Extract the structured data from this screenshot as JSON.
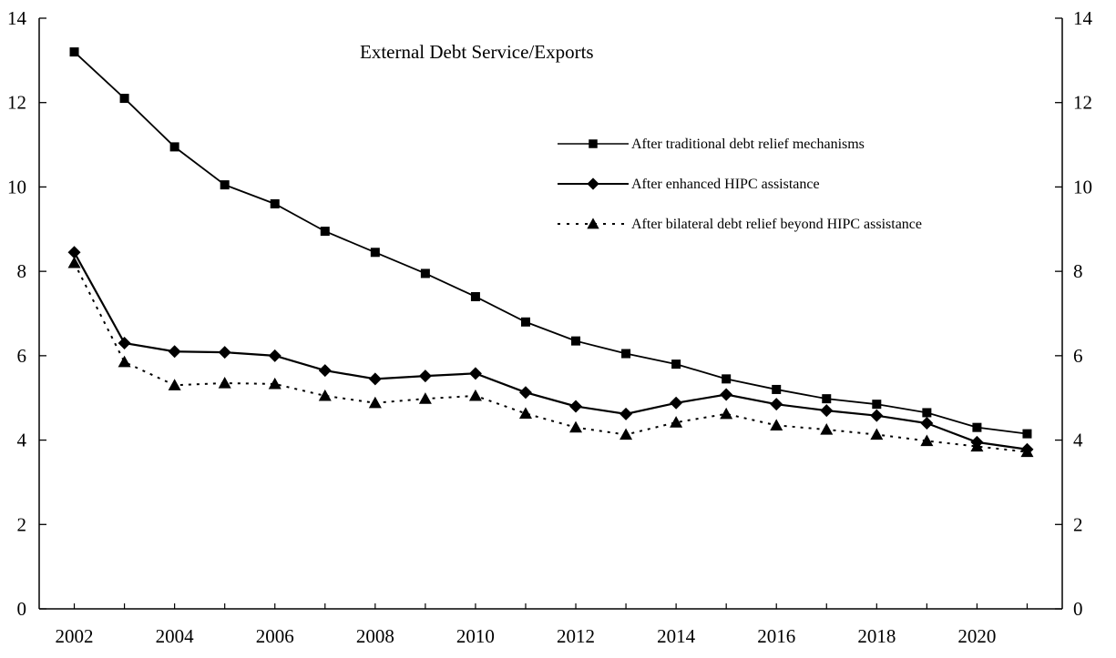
{
  "chart_data": {
    "type": "line",
    "title": "External Debt Service/Exports",
    "xlabel": "",
    "ylabel": "",
    "ylim": [
      0,
      14
    ],
    "y_ticks": [
      0,
      2,
      4,
      6,
      8,
      10,
      12,
      14
    ],
    "x_ticks": [
      2002,
      2004,
      2006,
      2008,
      2010,
      2012,
      2014,
      2016,
      2018,
      2020
    ],
    "x_range": [
      2001.3,
      2021.7
    ],
    "grid": false,
    "right_axis": true,
    "legend_position": "upper-right",
    "x": [
      2002,
      2003,
      2004,
      2005,
      2006,
      2007,
      2008,
      2009,
      2010,
      2011,
      2012,
      2013,
      2014,
      2015,
      2016,
      2017,
      2018,
      2019,
      2020,
      2021
    ],
    "series": [
      {
        "name": "After traditional debt relief mechanisms",
        "marker": "square",
        "line_style": "solid",
        "color": "#000000",
        "values": [
          13.2,
          12.1,
          10.95,
          10.05,
          9.6,
          8.95,
          8.45,
          7.95,
          7.4,
          6.8,
          6.35,
          6.05,
          5.8,
          5.45,
          5.2,
          4.98,
          4.85,
          4.65,
          4.3,
          4.15
        ]
      },
      {
        "name": "After enhanced HIPC assistance",
        "marker": "diamond",
        "line_style": "solid",
        "color": "#000000",
        "values": [
          8.45,
          6.3,
          6.1,
          6.08,
          6.0,
          5.65,
          5.45,
          5.52,
          5.58,
          5.13,
          4.8,
          4.62,
          4.88,
          5.08,
          4.85,
          4.7,
          4.58,
          4.4,
          3.95,
          3.78
        ]
      },
      {
        "name": "After bilateral debt relief beyond HIPC assistance",
        "marker": "triangle",
        "line_style": "dotted",
        "color": "#000000",
        "values": [
          8.2,
          5.85,
          5.3,
          5.35,
          5.33,
          5.05,
          4.88,
          4.98,
          5.05,
          4.63,
          4.3,
          4.13,
          4.42,
          4.62,
          4.35,
          4.25,
          4.13,
          3.98,
          3.85,
          3.72
        ]
      }
    ]
  }
}
